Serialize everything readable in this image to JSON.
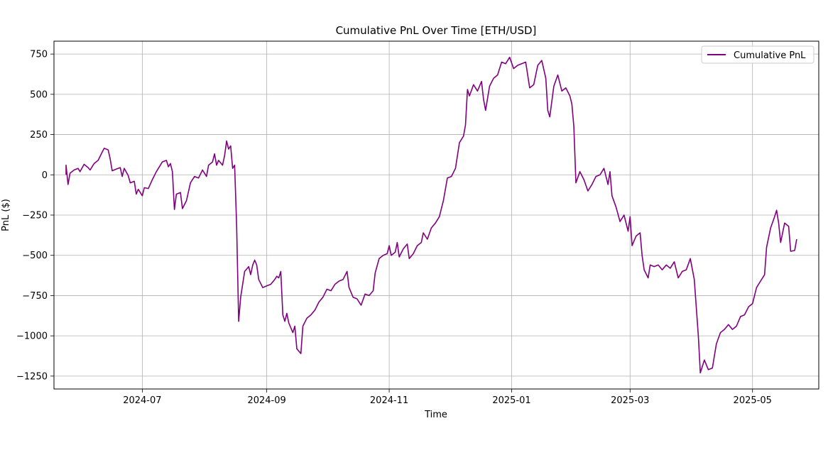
{
  "chart_data": {
    "type": "line",
    "title": "Cumulative PnL Over Time [ETH/USD]",
    "xlabel": "Time",
    "ylabel": "PnL ($)",
    "xlim": [
      "2024-05-18",
      "2025-06-03"
    ],
    "ylim": [
      -1330,
      830
    ],
    "x_ticks": [
      {
        "date": "2024-07-01",
        "label": "2024-07"
      },
      {
        "date": "2024-09-01",
        "label": "2024-09"
      },
      {
        "date": "2024-11-01",
        "label": "2024-11"
      },
      {
        "date": "2025-01-01",
        "label": "2025-01"
      },
      {
        "date": "2025-03-01",
        "label": "2025-03"
      },
      {
        "date": "2025-05-01",
        "label": "2025-05"
      }
    ],
    "y_ticks": [
      750,
      500,
      250,
      0,
      -250,
      -500,
      -750,
      -1000,
      -1250
    ],
    "y_tick_labels": [
      "750",
      "500",
      "250",
      "0",
      "−250",
      "−500",
      "−750",
      "−1000",
      "−1250"
    ],
    "grid": true,
    "legend_position": "top-right",
    "series": [
      {
        "name": "Cumulative PnL",
        "color": "#800080",
        "points": [
          [
            "2024-05-24",
            0
          ],
          [
            "2024-05-24",
            60
          ],
          [
            "2024-05-25",
            -60
          ],
          [
            "2024-05-26",
            10
          ],
          [
            "2024-05-28",
            30
          ],
          [
            "2024-05-30",
            40
          ],
          [
            "2024-05-31",
            20
          ],
          [
            "2024-06-02",
            65
          ],
          [
            "2024-06-04",
            45
          ],
          [
            "2024-06-05",
            30
          ],
          [
            "2024-06-07",
            70
          ],
          [
            "2024-06-09",
            90
          ],
          [
            "2024-06-11",
            140
          ],
          [
            "2024-06-12",
            165
          ],
          [
            "2024-06-14",
            155
          ],
          [
            "2024-06-15",
            100
          ],
          [
            "2024-06-16",
            25
          ],
          [
            "2024-06-18",
            35
          ],
          [
            "2024-06-20",
            45
          ],
          [
            "2024-06-21",
            -10
          ],
          [
            "2024-06-22",
            40
          ],
          [
            "2024-06-24",
            -5
          ],
          [
            "2024-06-25",
            -50
          ],
          [
            "2024-06-27",
            -40
          ],
          [
            "2024-06-28",
            -120
          ],
          [
            "2024-06-29",
            -90
          ],
          [
            "2024-07-01",
            -130
          ],
          [
            "2024-07-02",
            -80
          ],
          [
            "2024-07-04",
            -85
          ],
          [
            "2024-07-06",
            -30
          ],
          [
            "2024-07-08",
            20
          ],
          [
            "2024-07-10",
            60
          ],
          [
            "2024-07-11",
            80
          ],
          [
            "2024-07-13",
            90
          ],
          [
            "2024-07-14",
            50
          ],
          [
            "2024-07-15",
            70
          ],
          [
            "2024-07-16",
            20
          ],
          [
            "2024-07-17",
            -215
          ],
          [
            "2024-07-18",
            -120
          ],
          [
            "2024-07-20",
            -110
          ],
          [
            "2024-07-21",
            -210
          ],
          [
            "2024-07-23",
            -160
          ],
          [
            "2024-07-25",
            -50
          ],
          [
            "2024-07-27",
            -10
          ],
          [
            "2024-07-29",
            -20
          ],
          [
            "2024-07-31",
            30
          ],
          [
            "2024-08-02",
            -10
          ],
          [
            "2024-08-03",
            60
          ],
          [
            "2024-08-05",
            80
          ],
          [
            "2024-08-06",
            130
          ],
          [
            "2024-08-07",
            60
          ],
          [
            "2024-08-08",
            90
          ],
          [
            "2024-08-10",
            60
          ],
          [
            "2024-08-11",
            120
          ],
          [
            "2024-08-12",
            210
          ],
          [
            "2024-08-13",
            160
          ],
          [
            "2024-08-14",
            180
          ],
          [
            "2024-08-15",
            40
          ],
          [
            "2024-08-16",
            60
          ],
          [
            "2024-08-17",
            -310
          ],
          [
            "2024-08-18",
            -910
          ],
          [
            "2024-08-19",
            -760
          ],
          [
            "2024-08-21",
            -600
          ],
          [
            "2024-08-23",
            -570
          ],
          [
            "2024-08-24",
            -620
          ],
          [
            "2024-08-25",
            -560
          ],
          [
            "2024-08-26",
            -530
          ],
          [
            "2024-08-27",
            -560
          ],
          [
            "2024-08-28",
            -650
          ],
          [
            "2024-08-30",
            -700
          ],
          [
            "2024-09-01",
            -690
          ],
          [
            "2024-09-03",
            -680
          ],
          [
            "2024-09-05",
            -650
          ],
          [
            "2024-09-06",
            -630
          ],
          [
            "2024-09-07",
            -640
          ],
          [
            "2024-09-08",
            -600
          ],
          [
            "2024-09-09",
            -870
          ],
          [
            "2024-09-10",
            -910
          ],
          [
            "2024-09-11",
            -860
          ],
          [
            "2024-09-12",
            -920
          ],
          [
            "2024-09-14",
            -980
          ],
          [
            "2024-09-15",
            -940
          ],
          [
            "2024-09-16",
            -1080
          ],
          [
            "2024-09-18",
            -1110
          ],
          [
            "2024-09-19",
            -940
          ],
          [
            "2024-09-21",
            -890
          ],
          [
            "2024-09-23",
            -870
          ],
          [
            "2024-09-25",
            -840
          ],
          [
            "2024-09-27",
            -790
          ],
          [
            "2024-09-29",
            -760
          ],
          [
            "2024-10-01",
            -710
          ],
          [
            "2024-10-03",
            -720
          ],
          [
            "2024-10-05",
            -680
          ],
          [
            "2024-10-07",
            -660
          ],
          [
            "2024-10-09",
            -650
          ],
          [
            "2024-10-11",
            -600
          ],
          [
            "2024-10-12",
            -700
          ],
          [
            "2024-10-14",
            -760
          ],
          [
            "2024-10-16",
            -770
          ],
          [
            "2024-10-18",
            -810
          ],
          [
            "2024-10-20",
            -740
          ],
          [
            "2024-10-22",
            -750
          ],
          [
            "2024-10-24",
            -720
          ],
          [
            "2024-10-25",
            -610
          ],
          [
            "2024-10-27",
            -520
          ],
          [
            "2024-10-29",
            -500
          ],
          [
            "2024-10-31",
            -490
          ],
          [
            "2024-11-01",
            -440
          ],
          [
            "2024-11-02",
            -500
          ],
          [
            "2024-11-04",
            -480
          ],
          [
            "2024-11-05",
            -420
          ],
          [
            "2024-11-06",
            -510
          ],
          [
            "2024-11-08",
            -460
          ],
          [
            "2024-11-10",
            -430
          ],
          [
            "2024-11-11",
            -520
          ],
          [
            "2024-11-13",
            -490
          ],
          [
            "2024-11-15",
            -440
          ],
          [
            "2024-11-17",
            -420
          ],
          [
            "2024-11-18",
            -360
          ],
          [
            "2024-11-20",
            -400
          ],
          [
            "2024-11-22",
            -330
          ],
          [
            "2024-11-24",
            -300
          ],
          [
            "2024-11-26",
            -260
          ],
          [
            "2024-11-28",
            -160
          ],
          [
            "2024-11-30",
            -20
          ],
          [
            "2024-12-02",
            -10
          ],
          [
            "2024-12-04",
            40
          ],
          [
            "2024-12-06",
            200
          ],
          [
            "2024-12-08",
            240
          ],
          [
            "2024-12-09",
            310
          ],
          [
            "2024-12-10",
            530
          ],
          [
            "2024-12-11",
            490
          ],
          [
            "2024-12-13",
            560
          ],
          [
            "2024-12-15",
            520
          ],
          [
            "2024-12-17",
            580
          ],
          [
            "2024-12-18",
            470
          ],
          [
            "2024-12-19",
            400
          ],
          [
            "2024-12-21",
            550
          ],
          [
            "2024-12-23",
            600
          ],
          [
            "2024-12-25",
            620
          ],
          [
            "2024-12-27",
            700
          ],
          [
            "2024-12-29",
            690
          ],
          [
            "2024-12-31",
            730
          ],
          [
            "2025-01-02",
            660
          ],
          [
            "2025-01-04",
            680
          ],
          [
            "2025-01-06",
            690
          ],
          [
            "2025-01-08",
            700
          ],
          [
            "2025-01-09",
            620
          ],
          [
            "2025-01-10",
            540
          ],
          [
            "2025-01-12",
            560
          ],
          [
            "2025-01-14",
            680
          ],
          [
            "2025-01-16",
            710
          ],
          [
            "2025-01-18",
            600
          ],
          [
            "2025-01-19",
            400
          ],
          [
            "2025-01-20",
            360
          ],
          [
            "2025-01-22",
            550
          ],
          [
            "2025-01-24",
            620
          ],
          [
            "2025-01-26",
            520
          ],
          [
            "2025-01-28",
            540
          ],
          [
            "2025-01-30",
            490
          ],
          [
            "2025-01-31",
            440
          ],
          [
            "2025-02-01",
            300
          ],
          [
            "2025-02-02",
            -50
          ],
          [
            "2025-02-04",
            20
          ],
          [
            "2025-02-06",
            -30
          ],
          [
            "2025-02-08",
            -100
          ],
          [
            "2025-02-10",
            -60
          ],
          [
            "2025-02-12",
            -10
          ],
          [
            "2025-02-14",
            0
          ],
          [
            "2025-02-16",
            40
          ],
          [
            "2025-02-18",
            -60
          ],
          [
            "2025-02-19",
            20
          ],
          [
            "2025-02-20",
            -130
          ],
          [
            "2025-02-22",
            -200
          ],
          [
            "2025-02-24",
            -290
          ],
          [
            "2025-02-26",
            -250
          ],
          [
            "2025-02-28",
            -350
          ],
          [
            "2025-03-01",
            -260
          ],
          [
            "2025-03-02",
            -440
          ],
          [
            "2025-03-04",
            -380
          ],
          [
            "2025-03-06",
            -360
          ],
          [
            "2025-03-07",
            -500
          ],
          [
            "2025-03-08",
            -590
          ],
          [
            "2025-03-10",
            -640
          ],
          [
            "2025-03-11",
            -560
          ],
          [
            "2025-03-13",
            -570
          ],
          [
            "2025-03-15",
            -560
          ],
          [
            "2025-03-17",
            -590
          ],
          [
            "2025-03-19",
            -560
          ],
          [
            "2025-03-21",
            -580
          ],
          [
            "2025-03-23",
            -540
          ],
          [
            "2025-03-25",
            -640
          ],
          [
            "2025-03-27",
            -600
          ],
          [
            "2025-03-29",
            -590
          ],
          [
            "2025-03-31",
            -520
          ],
          [
            "2025-04-02",
            -650
          ],
          [
            "2025-04-04",
            -1000
          ],
          [
            "2025-04-05",
            -1230
          ],
          [
            "2025-04-07",
            -1150
          ],
          [
            "2025-04-09",
            -1210
          ],
          [
            "2025-04-11",
            -1200
          ],
          [
            "2025-04-13",
            -1050
          ],
          [
            "2025-04-15",
            -980
          ],
          [
            "2025-04-17",
            -960
          ],
          [
            "2025-04-19",
            -930
          ],
          [
            "2025-04-21",
            -960
          ],
          [
            "2025-04-23",
            -940
          ],
          [
            "2025-04-25",
            -880
          ],
          [
            "2025-04-27",
            -870
          ],
          [
            "2025-04-29",
            -820
          ],
          [
            "2025-05-01",
            -800
          ],
          [
            "2025-05-03",
            -700
          ],
          [
            "2025-05-05",
            -660
          ],
          [
            "2025-05-07",
            -620
          ],
          [
            "2025-05-08",
            -450
          ],
          [
            "2025-05-10",
            -330
          ],
          [
            "2025-05-12",
            -260
          ],
          [
            "2025-05-13",
            -220
          ],
          [
            "2025-05-14",
            -300
          ],
          [
            "2025-05-15",
            -420
          ],
          [
            "2025-05-17",
            -300
          ],
          [
            "2025-05-19",
            -320
          ],
          [
            "2025-05-20",
            -475
          ],
          [
            "2025-05-22",
            -470
          ],
          [
            "2025-05-23",
            -400
          ]
        ]
      }
    ]
  }
}
